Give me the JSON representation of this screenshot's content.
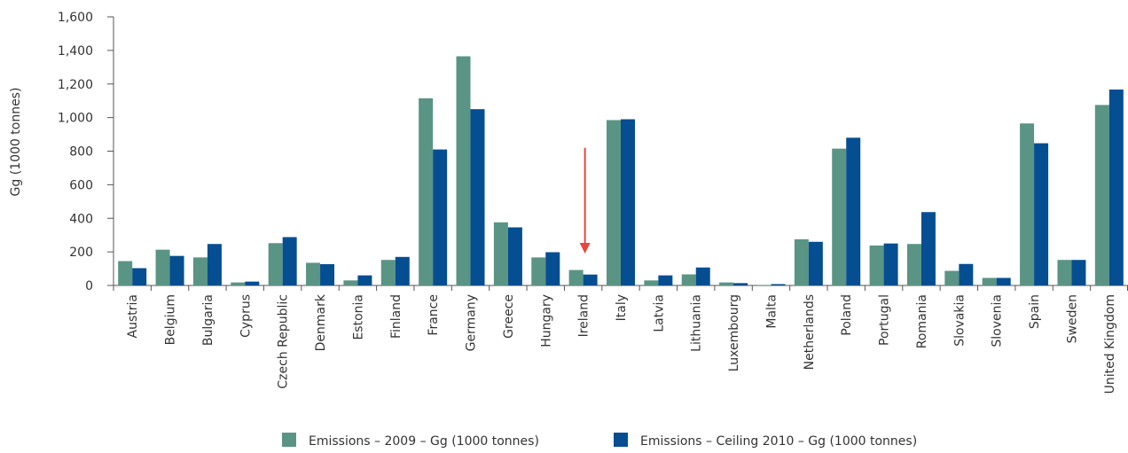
{
  "chart_data": {
    "type": "bar",
    "title": "",
    "xlabel": "",
    "ylabel": "Gg (1000 tonnes)",
    "ylim": [
      0,
      1600
    ],
    "yticks": [
      0,
      200,
      400,
      600,
      800,
      1000,
      1200,
      1400,
      1600
    ],
    "ytick_labels": [
      "0",
      "200",
      "400",
      "600",
      "800",
      "1,000",
      "1,200",
      "1,400",
      "1,600"
    ],
    "grid": false,
    "legend_position": "bottom",
    "categories": [
      "Austria",
      "Belgium",
      "Bulgaria",
      "Cyprus",
      "Czech Republic",
      "Denmark",
      "Estonia",
      "Finland",
      "France",
      "Germany",
      "Greece",
      "Hungary",
      "Ireland",
      "Italy",
      "Latvia",
      "Lithuania",
      "Luxembourg",
      "Malta",
      "Netherlands",
      "Poland",
      "Portugal",
      "Romania",
      "Slovakia",
      "Slovenia",
      "Spain",
      "Sweden",
      "United Kingdom"
    ],
    "series": [
      {
        "name": "Emissions – 2009 – Gg (1000 tonnes)",
        "color": "#5a9484",
        "values": [
          145,
          213,
          167,
          18,
          252,
          135,
          30,
          152,
          1115,
          1365,
          376,
          167,
          92,
          985,
          30,
          66,
          18,
          3,
          275,
          815,
          238,
          247,
          87,
          45,
          965,
          152,
          1075
        ]
      },
      {
        "name": "Emissions – Ceiling 2010 – Gg (1000 tonnes)",
        "color": "#054e91",
        "values": [
          103,
          176,
          247,
          23,
          288,
          127,
          60,
          170,
          810,
          1050,
          346,
          198,
          65,
          990,
          60,
          107,
          14,
          8,
          260,
          880,
          250,
          437,
          128,
          45,
          847,
          152,
          1167
        ]
      }
    ],
    "annotation": {
      "type": "arrow",
      "color": "#e8473c",
      "category": "Ireland",
      "from_value": 820,
      "to_value": 190
    },
    "colors": {
      "axis": "#555555",
      "text": "#333333"
    }
  }
}
